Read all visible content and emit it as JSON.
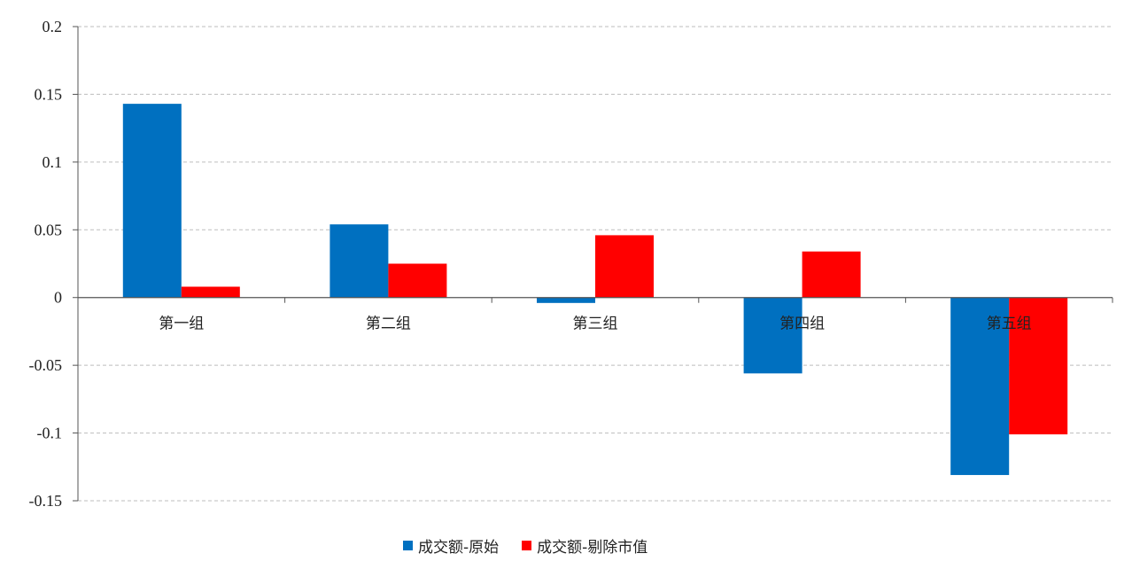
{
  "chart_data": {
    "type": "bar",
    "categories": [
      "第一组",
      "第二组",
      "第三组",
      "第四组",
      "第五组"
    ],
    "series": [
      {
        "name": "成交额-原始",
        "color": "#0070C0",
        "values": [
          0.143,
          0.054,
          -0.004,
          -0.056,
          -0.131
        ]
      },
      {
        "name": "成交额-剔除市值",
        "color": "#FF0000",
        "values": [
          0.008,
          0.025,
          0.046,
          0.034,
          -0.101
        ]
      }
    ],
    "yticks": [
      "0.2",
      "0.15",
      "0.1",
      "0.05",
      "0",
      "-0.05",
      "-0.1",
      "-0.15"
    ],
    "ylim": [
      -0.15,
      0.2
    ],
    "grid": true,
    "legend_position": "bottom-center",
    "title": "",
    "xlabel": "",
    "ylabel": ""
  }
}
